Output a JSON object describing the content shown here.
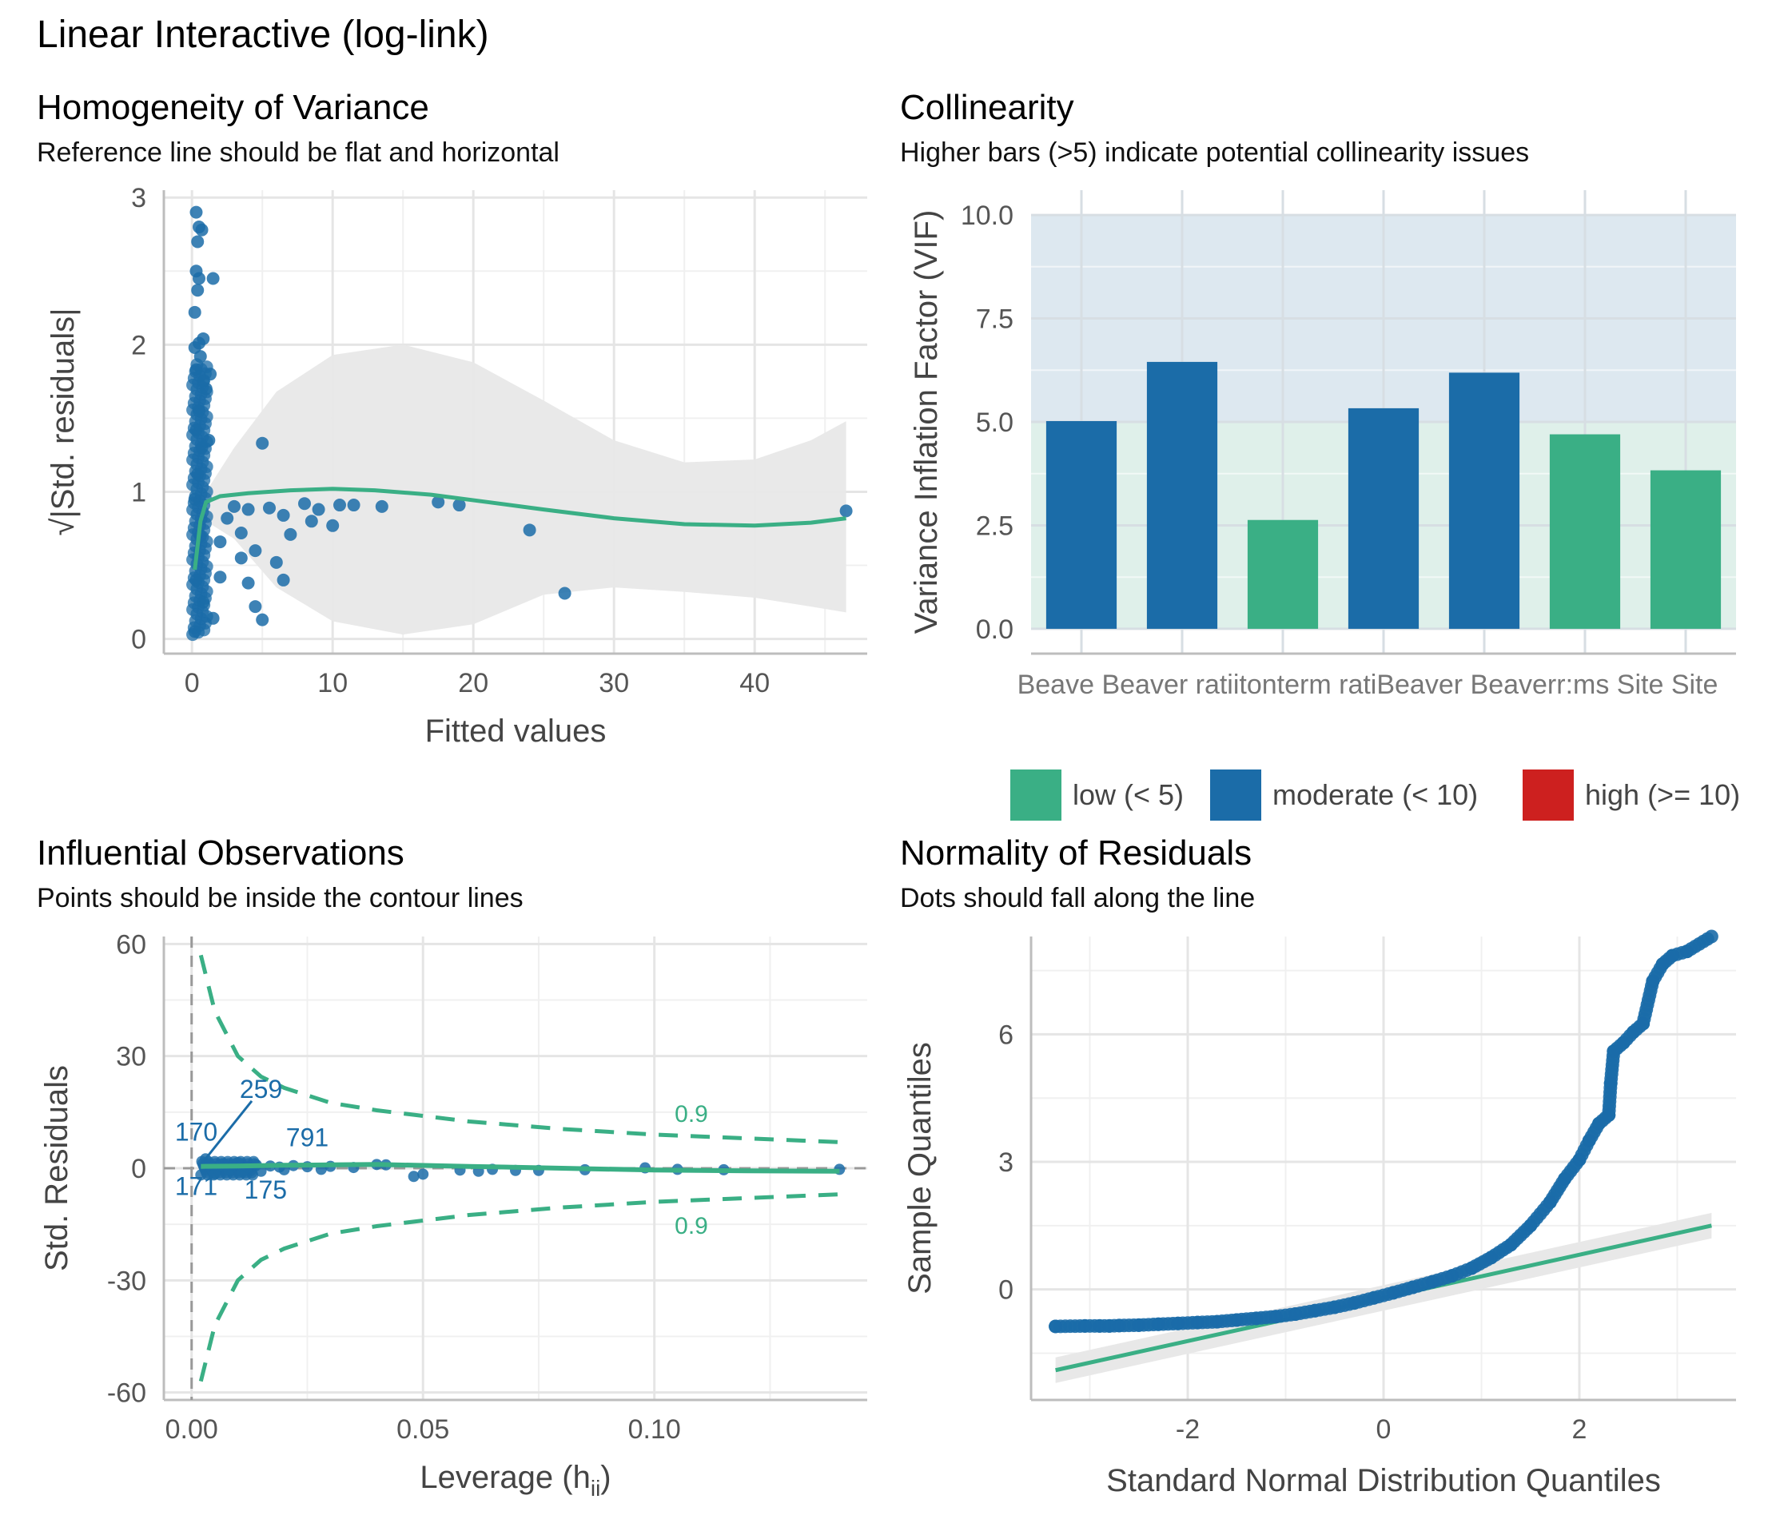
{
  "main_title": "Linear Interactive (log-link)",
  "colors": {
    "green": "#3aaf85",
    "blue": "#1b6ca8",
    "red": "#cd201f",
    "grid": "#e5e5e5",
    "band_green": "#dff0ea",
    "band_blue": "#dde8f0",
    "ribbon": "#e8e8e8"
  },
  "panels": {
    "homogeneity": {
      "title": "Homogeneity of Variance",
      "subtitle": "Reference line should be flat and horizontal"
    },
    "collinearity": {
      "title": "Collinearity",
      "subtitle": "Higher bars (>5) indicate potential collinearity issues"
    },
    "influential": {
      "title": "Influential Observations",
      "subtitle": "Points should be inside the contour lines"
    },
    "normality": {
      "title": "Normality of Residuals",
      "subtitle": "Dots should fall along the line"
    }
  },
  "chart_data": [
    {
      "type": "scatter",
      "panel": "homogeneity",
      "xlabel": "Fitted values",
      "ylabel": "√|Std. residuals|",
      "xlim": [
        -2,
        48
      ],
      "ylim": [
        -0.1,
        3.05
      ],
      "xticks": [
        "0",
        "10",
        "20",
        "30",
        "40"
      ],
      "yticks": [
        "0",
        "1",
        "2",
        "3"
      ],
      "grid": true,
      "points": [
        [
          5.0,
          1.33
        ],
        [
          4.0,
          0.88
        ],
        [
          5.5,
          0.89
        ],
        [
          6.5,
          0.84
        ],
        [
          7.0,
          0.71
        ],
        [
          8.0,
          0.92
        ],
        [
          8.5,
          0.8
        ],
        [
          9.0,
          0.88
        ],
        [
          10.0,
          0.77
        ],
        [
          10.5,
          0.91
        ],
        [
          11.5,
          0.91
        ],
        [
          13.5,
          0.9
        ],
        [
          17.5,
          0.93
        ],
        [
          19.0,
          0.91
        ],
        [
          24.0,
          0.74
        ],
        [
          26.5,
          0.31
        ],
        [
          46.5,
          0.87
        ],
        [
          4.5,
          0.6
        ],
        [
          5.0,
          0.13
        ],
        [
          6.5,
          0.4
        ],
        [
          6.0,
          0.52
        ],
        [
          4.0,
          0.38
        ],
        [
          4.5,
          0.22
        ],
        [
          3.0,
          0.9
        ],
        [
          3.5,
          0.72
        ],
        [
          2.5,
          0.82
        ],
        [
          2.0,
          0.66
        ],
        [
          2.0,
          0.42
        ],
        [
          1.5,
          0.14
        ],
        [
          3.5,
          0.55
        ],
        [
          0.3,
          2.9
        ],
        [
          0.5,
          2.8
        ],
        [
          0.7,
          2.78
        ],
        [
          0.4,
          2.7
        ],
        [
          0.3,
          2.5
        ],
        [
          0.5,
          2.45
        ],
        [
          1.5,
          2.45
        ],
        [
          0.2,
          2.22
        ],
        [
          0.4,
          2.37
        ],
        [
          0.2,
          1.98
        ],
        [
          0.5,
          2.01
        ],
        [
          0.8,
          2.04
        ],
        [
          0.6,
          1.92
        ],
        [
          0.3,
          1.83
        ],
        [
          1.3,
          1.8
        ],
        [
          0.8,
          1.75
        ],
        [
          1.0,
          1.7
        ],
        [
          0.5,
          1.55
        ],
        [
          0.3,
          1.42
        ],
        [
          1.2,
          1.35
        ],
        [
          0.7,
          1.3
        ],
        [
          0.4,
          1.12
        ],
        [
          0.2,
          0.95
        ],
        [
          0.6,
          0.7
        ],
        [
          0.3,
          0.4
        ],
        [
          0.8,
          0.25
        ],
        [
          0.2,
          0.05
        ]
      ],
      "loess": [
        [
          0.2,
          0.47
        ],
        [
          0.6,
          0.8
        ],
        [
          1.0,
          0.93
        ],
        [
          2.0,
          0.97
        ],
        [
          4.0,
          0.99
        ],
        [
          7.0,
          1.01
        ],
        [
          10.0,
          1.02
        ],
        [
          13.0,
          1.01
        ],
        [
          17.0,
          0.98
        ],
        [
          21.0,
          0.93
        ],
        [
          25.0,
          0.88
        ],
        [
          30.0,
          0.82
        ],
        [
          35.0,
          0.78
        ],
        [
          40.0,
          0.77
        ],
        [
          44.0,
          0.79
        ],
        [
          46.5,
          0.82
        ]
      ],
      "ribbon_upper": [
        [
          0.2,
          0.65
        ],
        [
          1.0,
          1.0
        ],
        [
          3.0,
          1.3
        ],
        [
          6.0,
          1.68
        ],
        [
          10.0,
          1.93
        ],
        [
          15.0,
          2.0
        ],
        [
          20.0,
          1.88
        ],
        [
          25.0,
          1.62
        ],
        [
          30.0,
          1.35
        ],
        [
          35.0,
          1.2
        ],
        [
          40.0,
          1.22
        ],
        [
          44.0,
          1.35
        ],
        [
          46.5,
          1.48
        ]
      ],
      "ribbon_lower": [
        [
          0.2,
          0.3
        ],
        [
          1.0,
          0.8
        ],
        [
          3.0,
          0.68
        ],
        [
          6.0,
          0.35
        ],
        [
          10.0,
          0.12
        ],
        [
          15.0,
          0.03
        ],
        [
          20.0,
          0.1
        ],
        [
          25.0,
          0.3
        ],
        [
          30.0,
          0.35
        ],
        [
          35.0,
          0.32
        ],
        [
          40.0,
          0.28
        ],
        [
          44.0,
          0.22
        ],
        [
          46.5,
          0.18
        ]
      ]
    },
    {
      "type": "bar",
      "panel": "collinearity",
      "ylabel": "Variance Inflation Factor (VIF)",
      "ylim": [
        -0.6,
        10.6
      ],
      "yticks": [
        "0.0",
        "2.5",
        "5.0",
        "7.5",
        "10.0"
      ],
      "categories_text": "Beave Beaver ratiitonterm ratiBeaver Beaverr:ms Site Site",
      "values": [
        5.02,
        6.45,
        2.63,
        5.33,
        6.19,
        4.7,
        3.83
      ],
      "levels": [
        "moderate",
        "moderate",
        "low",
        "moderate",
        "moderate",
        "low",
        "low"
      ],
      "legend": [
        {
          "key": "low",
          "label": "low (< 5)"
        },
        {
          "key": "moderate",
          "label": "moderate (< 10)"
        },
        {
          "key": "high",
          "label": "high (>= 10)"
        }
      ],
      "legend_position": "bottom"
    },
    {
      "type": "scatter",
      "panel": "influential",
      "xlabel": "Leverage (h",
      "xlabel_sub": "ii",
      "xlabel_end": ")",
      "ylabel": "Std. Residuals",
      "xlim": [
        -0.006,
        0.146
      ],
      "ylim": [
        -62,
        62
      ],
      "xticks": [
        "0.00",
        "0.05",
        "0.10"
      ],
      "yticks": [
        "-60",
        "-30",
        "0",
        "30",
        "60"
      ],
      "grid": true,
      "contour_label": "0.9",
      "contour_upper": [
        [
          0.002,
          57
        ],
        [
          0.005,
          42
        ],
        [
          0.01,
          30
        ],
        [
          0.015,
          24.5
        ],
        [
          0.02,
          21.5
        ],
        [
          0.03,
          17.5
        ],
        [
          0.04,
          15.5
        ],
        [
          0.06,
          12.5
        ],
        [
          0.08,
          10.5
        ],
        [
          0.1,
          9.0
        ],
        [
          0.12,
          8.0
        ],
        [
          0.14,
          7.0
        ]
      ],
      "contour_lower": [
        [
          0.002,
          -57
        ],
        [
          0.005,
          -42
        ],
        [
          0.01,
          -30
        ],
        [
          0.015,
          -24.5
        ],
        [
          0.02,
          -21.5
        ],
        [
          0.03,
          -17.5
        ],
        [
          0.04,
          -15.5
        ],
        [
          0.06,
          -12.5
        ],
        [
          0.08,
          -10.5
        ],
        [
          0.1,
          -9.0
        ],
        [
          0.12,
          -8.0
        ],
        [
          0.14,
          -7.0
        ]
      ],
      "fit_line": [
        [
          0.002,
          0.5
        ],
        [
          0.01,
          0.6
        ],
        [
          0.02,
          0.8
        ],
        [
          0.03,
          0.9
        ],
        [
          0.04,
          1.0
        ],
        [
          0.06,
          0.5
        ],
        [
          0.08,
          0.0
        ],
        [
          0.1,
          -0.5
        ],
        [
          0.12,
          -0.7
        ],
        [
          0.14,
          -0.8
        ]
      ],
      "points": [
        [
          0.003,
          2.5
        ],
        [
          0.004,
          1.0
        ],
        [
          0.005,
          -1.5
        ],
        [
          0.006,
          0.5
        ],
        [
          0.007,
          1.2
        ],
        [
          0.008,
          -0.5
        ],
        [
          0.009,
          0.8
        ],
        [
          0.01,
          1.5
        ],
        [
          0.011,
          -1.0
        ],
        [
          0.012,
          0.2
        ],
        [
          0.014,
          0.9
        ],
        [
          0.015,
          -0.8
        ],
        [
          0.017,
          0.6
        ],
        [
          0.019,
          0.3
        ],
        [
          0.02,
          -0.4
        ],
        [
          0.022,
          0.7
        ],
        [
          0.025,
          0.4
        ],
        [
          0.028,
          -0.3
        ],
        [
          0.03,
          0.5
        ],
        [
          0.035,
          0.2
        ],
        [
          0.04,
          1.0
        ],
        [
          0.042,
          0.9
        ],
        [
          0.048,
          -2.2
        ],
        [
          0.05,
          -1.6
        ],
        [
          0.058,
          -0.5
        ],
        [
          0.062,
          -0.8
        ],
        [
          0.065,
          -0.3
        ],
        [
          0.07,
          -0.6
        ],
        [
          0.075,
          -0.6
        ],
        [
          0.085,
          -0.4
        ],
        [
          0.098,
          0.1
        ],
        [
          0.105,
          -0.3
        ],
        [
          0.115,
          -0.4
        ],
        [
          0.14,
          -0.3
        ]
      ],
      "labels": [
        {
          "text": "259",
          "x": 0.015,
          "y": 21
        },
        {
          "text": "170",
          "x": 0.001,
          "y": 9.5
        },
        {
          "text": "791",
          "x": 0.025,
          "y": 8
        },
        {
          "text": "171",
          "x": 0.001,
          "y": -5
        },
        {
          "text": "175",
          "x": 0.016,
          "y": -6
        }
      ]
    },
    {
      "type": "scatter",
      "panel": "normality",
      "xlabel": "Standard Normal Distribution Quantiles",
      "ylabel": "Sample Quantiles",
      "xlim": [
        -3.6,
        3.6
      ],
      "ylim": [
        -2.6,
        8.3
      ],
      "xticks": [
        "-2",
        "0",
        "2"
      ],
      "yticks": [
        "0",
        "3",
        "6"
      ],
      "grid": true,
      "reference_line": [
        [
          -3.35,
          -1.9
        ],
        [
          3.35,
          1.5
        ]
      ],
      "points": [
        [
          -3.35,
          -0.87
        ],
        [
          -3.05,
          -0.86
        ],
        [
          -2.9,
          -0.86
        ],
        [
          -2.8,
          -0.86
        ],
        [
          -2.7,
          -0.85
        ],
        [
          -2.5,
          -0.84
        ],
        [
          -2.3,
          -0.82
        ],
        [
          -2.1,
          -0.8
        ],
        [
          -1.9,
          -0.78
        ],
        [
          -1.7,
          -0.76
        ],
        [
          -1.5,
          -0.72
        ],
        [
          -1.3,
          -0.68
        ],
        [
          -1.1,
          -0.64
        ],
        [
          -0.9,
          -0.58
        ],
        [
          -0.7,
          -0.5
        ],
        [
          -0.5,
          -0.42
        ],
        [
          -0.3,
          -0.32
        ],
        [
          -0.1,
          -0.2
        ],
        [
          0.1,
          -0.08
        ],
        [
          0.3,
          0.05
        ],
        [
          0.5,
          0.18
        ],
        [
          0.7,
          0.32
        ],
        [
          0.9,
          0.5
        ],
        [
          1.1,
          0.75
        ],
        [
          1.3,
          1.05
        ],
        [
          1.5,
          1.5
        ],
        [
          1.7,
          2.05
        ],
        [
          1.85,
          2.6
        ],
        [
          2.0,
          3.05
        ],
        [
          2.1,
          3.5
        ],
        [
          2.2,
          3.9
        ],
        [
          2.3,
          4.1
        ],
        [
          2.32,
          4.85
        ],
        [
          2.35,
          5.6
        ],
        [
          2.45,
          5.8
        ],
        [
          2.55,
          6.05
        ],
        [
          2.65,
          6.25
        ],
        [
          2.75,
          7.25
        ],
        [
          2.85,
          7.65
        ],
        [
          2.95,
          7.85
        ],
        [
          3.1,
          7.95
        ],
        [
          3.35,
          8.3
        ]
      ]
    }
  ]
}
